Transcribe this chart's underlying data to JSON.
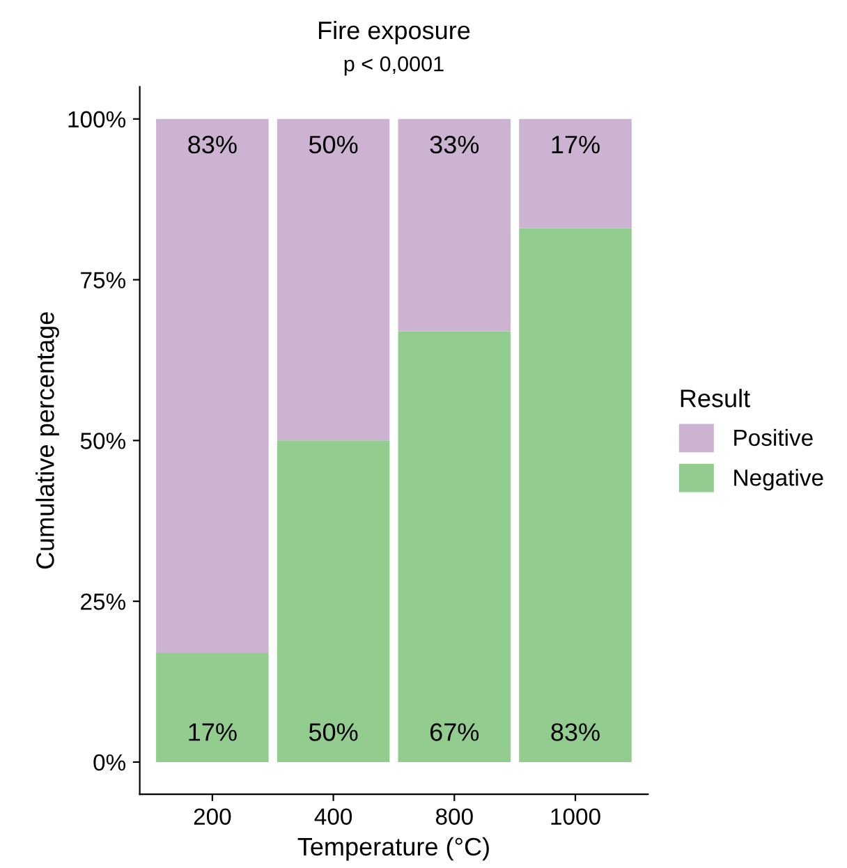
{
  "chart_data": {
    "type": "bar",
    "title": "Fire exposure",
    "subtitle": "p < 0,0001",
    "xlabel": "Temperature (°C)",
    "ylabel": "Cumulative percentage",
    "legend_title": "Result",
    "categories": [
      "200",
      "400",
      "800",
      "1000"
    ],
    "stacked": true,
    "series": [
      {
        "name": "Negative",
        "color": "#93cc8f",
        "values": [
          17,
          50,
          67,
          83
        ],
        "value_labels": [
          "17%",
          "50%",
          "67%",
          "83%"
        ]
      },
      {
        "name": "Positive",
        "color": "#ccb3d1",
        "values": [
          83,
          50,
          33,
          17
        ],
        "value_labels": [
          "83%",
          "50%",
          "33%",
          "17%"
        ]
      }
    ],
    "ylim": [
      -5,
      105
    ],
    "yticks": [
      {
        "value": 0,
        "label": "0%"
      },
      {
        "value": 25,
        "label": "25%"
      },
      {
        "value": 50,
        "label": "50%"
      },
      {
        "value": 75,
        "label": "75%"
      },
      {
        "value": 100,
        "label": "100%"
      }
    ],
    "grid": false,
    "legend": "right"
  }
}
